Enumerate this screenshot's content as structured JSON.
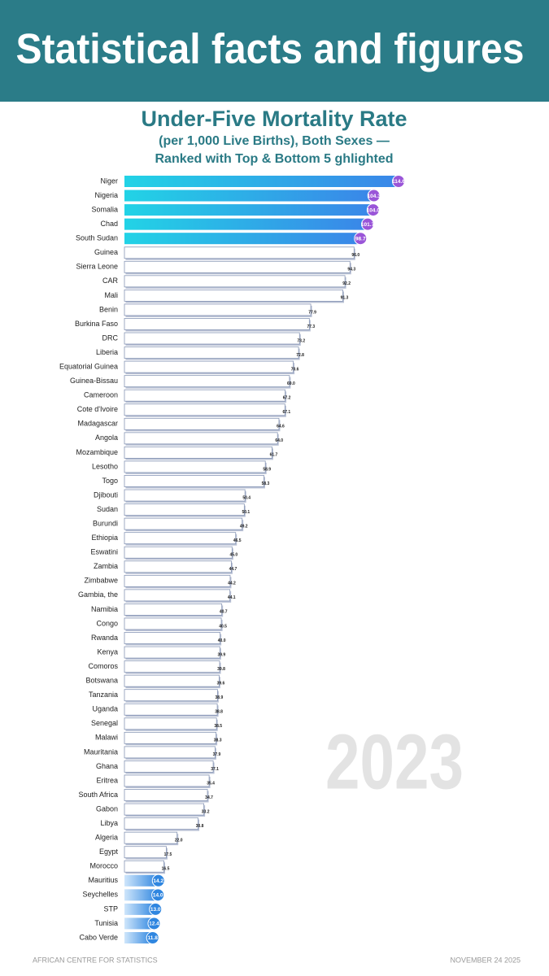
{
  "header": "Statistical facts and figures",
  "footer": {
    "left": "AFRICAN CENTRE FOR STATISTICS",
    "right": "NOVEMBER 24 2025"
  },
  "chart_data": {
    "type": "bar",
    "orientation": "horizontal",
    "title": "Under-Five Mortality Rate",
    "subtitle": [
      "(per 1,000 Live Births), Both Sexes —",
      "Ranked with Top & Bottom 5 ghlighted"
    ],
    "annotation": "2023",
    "categories": [
      "Niger",
      "Nigeria",
      "Somalia",
      "Chad",
      "South Sudan",
      "Guinea",
      "Sierra Leone",
      "CAR",
      "Mali",
      "Benin",
      "Burkina Faso",
      "DRC",
      "Liberia",
      "Equatorial Guinea",
      "Guinea-Bissau",
      "Cameroon",
      "Cote d'Ivoire",
      "Madagascar",
      "Angola",
      "Mozambique",
      "Lesotho",
      "Togo",
      "Djibouti",
      "Sudan",
      "Burundi",
      "Ethiopia",
      "Eswatini",
      "Zambia",
      "Zimbabwe",
      "Gambia, the",
      "Namibia",
      "Congo",
      "Rwanda",
      "Kenya",
      "Comoros",
      "Botswana",
      "Tanzania",
      "Uganda",
      "Senegal",
      "Malawi",
      "Mauritania",
      "Ghana",
      "Eritrea",
      "South Africa",
      "Gabon",
      "Libya",
      "Algeria",
      "Egypt",
      "Morocco",
      "Mauritius",
      "Seychelles",
      "STP",
      "Tunisia",
      "Cabo Verde"
    ],
    "values": [
      114.6,
      104.3,
      104.0,
      101.7,
      98.7,
      96.0,
      94.3,
      92.2,
      91.3,
      77.9,
      77.3,
      73.2,
      72.8,
      70.6,
      69.0,
      67.2,
      67.1,
      64.6,
      64.0,
      61.7,
      58.9,
      58.3,
      50.4,
      50.1,
      49.2,
      46.5,
      45.0,
      44.7,
      44.2,
      44.1,
      40.7,
      40.5,
      40.0,
      39.9,
      39.8,
      39.6,
      38.9,
      38.8,
      38.5,
      38.3,
      37.9,
      37.1,
      35.4,
      34.7,
      33.2,
      30.8,
      22.0,
      17.5,
      16.5,
      14.2,
      14.0,
      13.0,
      12.4,
      11.8
    ],
    "value_labels": [
      "114.6",
      "104.3",
      "104.0",
      "101.7",
      "98.7",
      "96.0",
      "94.3",
      "92.2",
      "91.3",
      "77.9",
      "77.3",
      "73.2",
      "72.8",
      "70.6",
      "69.0",
      "67.2",
      "67.1",
      "64.6",
      "64.0",
      "61.7",
      "58.9",
      "58.3",
      "50.4",
      "50.1",
      "49.2",
      "46.5",
      "45.0",
      "44.7",
      "44.2",
      "44.1",
      "40.7",
      "40.5",
      "40.0",
      "39.9",
      "39.8",
      "39.6",
      "38.9",
      "38.8",
      "38.5",
      "38.3",
      "37.9",
      "37.1",
      "35.4",
      "34.7",
      "33.2",
      "30.8",
      "22.0",
      "17.5",
      "16.5",
      "14.2",
      "14.0",
      "13.0",
      "12.4",
      "11.8"
    ],
    "highlight_count": 5,
    "colors": {
      "top": [
        "#22d3e6",
        "#3a86e8"
      ],
      "top_marker": "#9a55d8",
      "bottom": [
        "#cfe6fb",
        "#2f86e0"
      ],
      "bottom_marker": "#2f86e0",
      "other": "#ffffff",
      "outline": "#8796b5"
    }
  }
}
